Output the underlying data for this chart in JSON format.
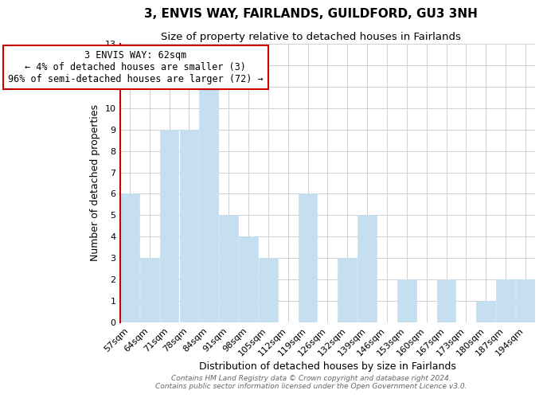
{
  "title": "3, ENVIS WAY, FAIRLANDS, GUILDFORD, GU3 3NH",
  "subtitle": "Size of property relative to detached houses in Fairlands",
  "xlabel": "Distribution of detached houses by size in Fairlands",
  "ylabel": "Number of detached properties",
  "bar_labels": [
    "57sqm",
    "64sqm",
    "71sqm",
    "78sqm",
    "84sqm",
    "91sqm",
    "98sqm",
    "105sqm",
    "112sqm",
    "119sqm",
    "126sqm",
    "132sqm",
    "139sqm",
    "146sqm",
    "153sqm",
    "160sqm",
    "167sqm",
    "173sqm",
    "180sqm",
    "187sqm",
    "194sqm"
  ],
  "bar_heights": [
    6,
    3,
    9,
    9,
    11,
    5,
    4,
    3,
    0,
    6,
    0,
    3,
    5,
    0,
    2,
    0,
    2,
    0,
    1,
    2,
    2
  ],
  "bar_color": "#c5dff0",
  "highlight_color": "#cc0000",
  "annotation_title": "3 ENVIS WAY: 62sqm",
  "annotation_line1": "← 4% of detached houses are smaller (3)",
  "annotation_line2": "96% of semi-detached houses are larger (72) →",
  "annotation_box_color": "#ffffff",
  "annotation_box_edgecolor": "#cc0000",
  "ylim": [
    0,
    13
  ],
  "yticks": [
    0,
    1,
    2,
    3,
    4,
    5,
    6,
    7,
    8,
    9,
    10,
    11,
    12,
    13
  ],
  "footer_line1": "Contains HM Land Registry data © Crown copyright and database right 2024.",
  "footer_line2": "Contains public sector information licensed under the Open Government Licence v3.0.",
  "bg_color": "#ffffff",
  "grid_color": "#d0d0d0",
  "title_fontsize": 11,
  "subtitle_fontsize": 9.5,
  "axis_label_fontsize": 9,
  "tick_fontsize": 8,
  "annotation_fontsize": 8.5,
  "footer_fontsize": 6.5
}
